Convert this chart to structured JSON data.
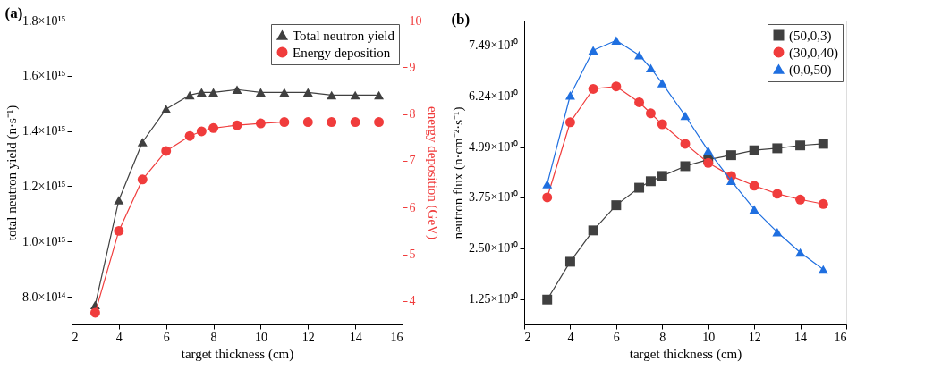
{
  "chart_data": [
    {
      "type": "line",
      "title": "(a)",
      "xlabel": "target thickness (cm)",
      "ylabel": "total neutron yield (n·s⁻¹)",
      "y2label": "energy deposition (GeV)",
      "x": [
        3,
        4,
        5,
        6,
        7,
        7.5,
        8,
        9,
        10,
        11,
        12,
        13,
        14,
        15
      ],
      "xlim": [
        2,
        16
      ],
      "xticks": [
        2,
        4,
        6,
        8,
        10,
        12,
        14,
        16
      ],
      "ylim": [
        700000000000000.0,
        1800000000000000.0
      ],
      "yticks": [
        {
          "value": 800000000000000.0,
          "label": "8.0×10¹⁴"
        },
        {
          "value": 1000000000000000.0,
          "label": "1.0×10¹⁵"
        },
        {
          "value": 1200000000000000.0,
          "label": "1.2×10¹⁵"
        },
        {
          "value": 1400000000000000.0,
          "label": "1.4×10¹⁵"
        },
        {
          "value": 1600000000000000.0,
          "label": "1.6×10¹⁵"
        },
        {
          "value": 1800000000000000.0,
          "label": "1.8×10¹⁵"
        }
      ],
      "y2lim": [
        3.5,
        10
      ],
      "y2ticks": [
        4,
        5,
        6,
        7,
        8,
        9,
        10
      ],
      "grid": false,
      "legend": "top right",
      "series": [
        {
          "name": "Total neutron yield",
          "color": "#404040",
          "marker": "triangle",
          "values": [
            770000000000000.0,
            1150000000000000.0,
            1360000000000000.0,
            1480000000000000.0,
            1530000000000000.0,
            1540000000000000.0,
            1540000000000000.0,
            1550000000000000.0,
            1540000000000000.0,
            1540000000000000.0,
            1540000000000000.0,
            1530000000000000.0,
            1530000000000000.0,
            1530000000000000.0
          ]
        },
        {
          "name": "Energy deposition",
          "color": "#f03c3c",
          "marker": "circle",
          "axis": "y2",
          "values": [
            3.75,
            5.5,
            6.6,
            7.21,
            7.53,
            7.63,
            7.7,
            7.76,
            7.8,
            7.83,
            7.83,
            7.83,
            7.83,
            7.83
          ]
        }
      ]
    },
    {
      "type": "line",
      "title": "(b)",
      "xlabel": "target thickness (cm)",
      "ylabel": "neutron flux (n·cm⁻²·s⁻¹)",
      "x": [
        3,
        4,
        5,
        6,
        7,
        7.5,
        8,
        9,
        10,
        11,
        12,
        13,
        14,
        15
      ],
      "xlim": [
        2,
        16
      ],
      "xticks": [
        2,
        4,
        6,
        8,
        10,
        12,
        14,
        16
      ],
      "ylim": [
        6300000000.0,
        81000000000.0
      ],
      "yticks": [
        {
          "value": 12500000000.0,
          "label": "1.25×10¹⁰"
        },
        {
          "value": 25000000000.0,
          "label": "2.50×10¹⁰"
        },
        {
          "value": 37500000000.0,
          "label": "3.75×10¹⁰"
        },
        {
          "value": 49900000000.0,
          "label": "4.99×10¹⁰"
        },
        {
          "value": 62400000000.0,
          "label": "6.24×10¹⁰"
        },
        {
          "value": 74900000000.0,
          "label": "7.49×10¹⁰"
        }
      ],
      "grid": false,
      "legend": "top right",
      "series": [
        {
          "name": "(50,0,3)",
          "color": "#404040",
          "marker": "square",
          "values": [
            12400000000.0,
            21700000000.0,
            29400000000.0,
            35600000000.0,
            39900000000.0,
            41500000000.0,
            42800000000.0,
            45200000000.0,
            46800000000.0,
            47900000000.0,
            49100000000.0,
            49600000000.0,
            50300000000.0,
            50700000000.0
          ]
        },
        {
          "name": "(30,0,40)",
          "color": "#f03c3c",
          "marker": "circle",
          "values": [
            37500000000.0,
            56000000000.0,
            64200000000.0,
            64800000000.0,
            60900000000.0,
            58200000000.0,
            55500000000.0,
            50700000000.0,
            46000000000.0,
            42800000000.0,
            40400000000.0,
            38400000000.0,
            37000000000.0,
            35900000000.0
          ]
        },
        {
          "name": "(0,0,50)",
          "color": "#1f6fe0",
          "marker": "triangle",
          "values": [
            40800000000.0,
            62600000000.0,
            73700000000.0,
            76100000000.0,
            72500000000.0,
            69300000000.0,
            65600000000.0,
            57600000000.0,
            49000000000.0,
            41600000000.0,
            34600000000.0,
            29000000000.0,
            24000000000.0,
            19800000000.0
          ]
        }
      ]
    }
  ]
}
